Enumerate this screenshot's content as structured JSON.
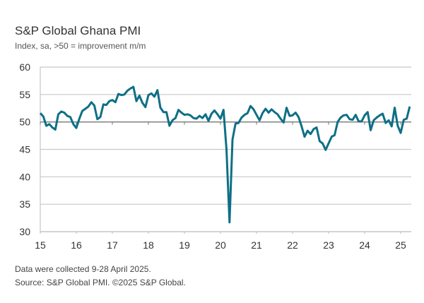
{
  "chart_data": {
    "type": "line",
    "title": "S&P Global Ghana PMI",
    "subtitle": "Index, sa, >50 = improvement m/m",
    "xlabel": "",
    "ylabel": "",
    "ylim": [
      30,
      60
    ],
    "yticks": [
      "60",
      "55",
      "50",
      "45",
      "40",
      "35",
      "30"
    ],
    "xticks": [
      "15",
      "16",
      "17",
      "18",
      "19",
      "20",
      "21",
      "22",
      "23",
      "24",
      "25"
    ],
    "x_start": "2015-01",
    "x_frequency": "monthly",
    "reference_line": 50,
    "grid": true,
    "line_color": "#0e6f86",
    "values": [
      51.6,
      51.0,
      49.3,
      49.6,
      49.0,
      48.6,
      51.4,
      51.9,
      51.7,
      51.1,
      50.9,
      49.6,
      48.9,
      50.6,
      52.0,
      52.4,
      52.8,
      53.6,
      53.0,
      50.5,
      50.9,
      53.2,
      53.1,
      53.8,
      54.0,
      53.6,
      55.1,
      54.9,
      55.0,
      55.7,
      56.1,
      56.4,
      53.8,
      54.8,
      53.5,
      52.7,
      54.9,
      55.2,
      54.6,
      55.8,
      52.6,
      51.8,
      51.8,
      49.3,
      50.3,
      50.7,
      52.2,
      51.7,
      51.3,
      51.4,
      51.2,
      50.7,
      50.6,
      51.1,
      50.7,
      51.4,
      50.2,
      51.5,
      52.1,
      51.4,
      50.6,
      52.2,
      45.0,
      31.7,
      46.8,
      49.7,
      49.8,
      50.8,
      51.3,
      51.6,
      52.9,
      52.3,
      51.3,
      50.3,
      51.6,
      52.4,
      51.7,
      52.3,
      51.8,
      51.4,
      50.6,
      49.9,
      52.6,
      51.1,
      51.2,
      51.7,
      50.9,
      49.2,
      47.3,
      48.4,
      47.8,
      48.7,
      49.0,
      46.5,
      46.1,
      44.9,
      46.1,
      47.3,
      47.6,
      50.0,
      50.8,
      51.2,
      51.3,
      50.5,
      50.4,
      51.3,
      50.1,
      50.1,
      51.2,
      51.8,
      48.5,
      50.3,
      50.8,
      51.2,
      51.5,
      49.8,
      50.3,
      49.2,
      52.6,
      49.3,
      48.0,
      50.4,
      50.6,
      52.8
    ]
  },
  "footnotes": {
    "collected": "Data were collected 9-28 April 2025.",
    "source": "Source: S&P Global PMI. ©2025 S&P Global."
  }
}
